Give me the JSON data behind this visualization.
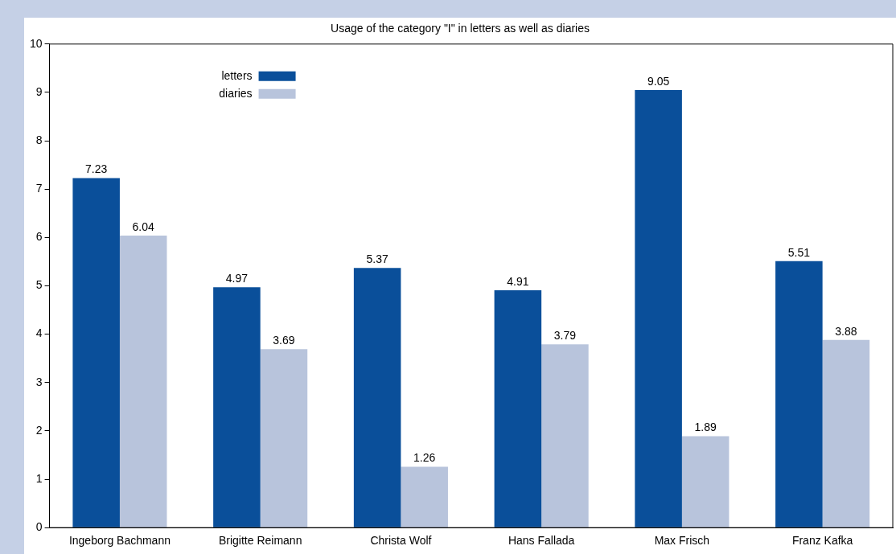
{
  "chart_data": {
    "type": "bar",
    "title": "Usage of the category \"I\" in letters as well as diaries",
    "categories": [
      "Ingeborg Bachmann",
      "Brigitte Reimann",
      "Christa Wolf",
      "Hans Fallada",
      "Max Frisch",
      "Franz Kafka"
    ],
    "series": [
      {
        "name": "letters",
        "color": "#0a4f9a",
        "values": [
          7.23,
          4.97,
          5.37,
          4.91,
          9.05,
          5.51
        ]
      },
      {
        "name": "diaries",
        "color": "#b8c4dc",
        "values": [
          6.04,
          3.69,
          1.26,
          3.79,
          1.89,
          3.88
        ]
      }
    ],
    "ylim": [
      0,
      10
    ],
    "yticks": [
      0,
      1,
      2,
      3,
      4,
      5,
      6,
      7,
      8,
      9,
      10
    ],
    "grid": false,
    "legend": "top left",
    "data_labels": true
  }
}
